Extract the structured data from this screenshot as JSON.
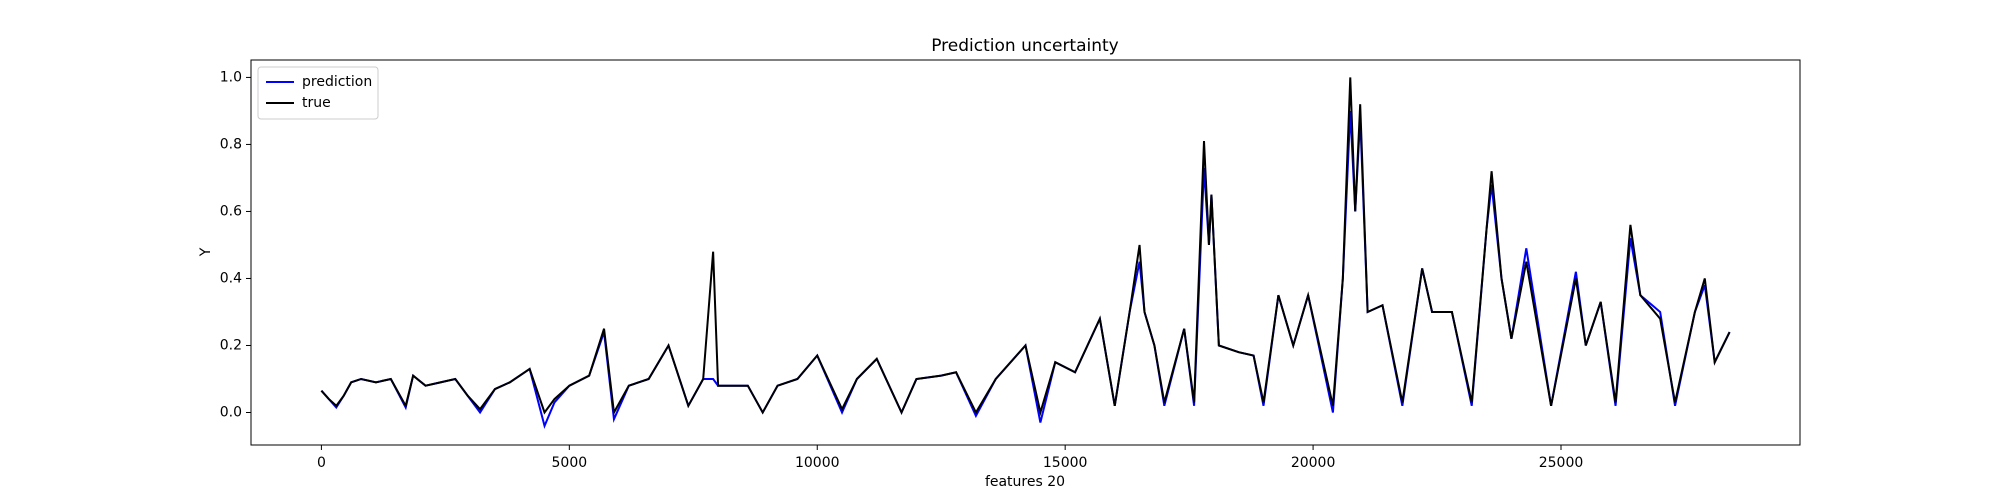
{
  "chart_data": {
    "type": "line",
    "title": "Prediction uncertainty",
    "x_label": "features 20",
    "y_label": "Y",
    "x": [
      0,
      150,
      300,
      450,
      600,
      800,
      1100,
      1400,
      1700,
      1850,
      2100,
      2400,
      2700,
      2950,
      3200,
      3500,
      3800,
      4200,
      4500,
      4700,
      5000,
      5400,
      5700,
      5900,
      6200,
      6600,
      7000,
      7400,
      7700,
      7900,
      8000,
      8600,
      8900,
      9200,
      9600,
      10000,
      10500,
      10800,
      11200,
      11700,
      12000,
      12500,
      12800,
      13200,
      13600,
      14200,
      14500,
      14800,
      15200,
      15700,
      16000,
      16300,
      16500,
      16600,
      16800,
      17000,
      17400,
      17600,
      17800,
      17900,
      17950,
      18100,
      18500,
      18800,
      19000,
      19300,
      19600,
      19900,
      20400,
      20600,
      20750,
      20850,
      20950,
      21100,
      21400,
      21800,
      22200,
      22400,
      22800,
      23200,
      23500,
      23600,
      23800,
      24000,
      24300,
      24800,
      25300,
      25500,
      25800,
      26100,
      26400,
      26600,
      27000,
      27300,
      27700,
      27900,
      28100,
      28400
    ],
    "series": [
      {
        "name": "prediction",
        "color": "#0000ff",
        "values": [
          0.065,
          0.04,
          0.015,
          0.05,
          0.09,
          0.1,
          0.09,
          0.1,
          0.015,
          0.11,
          0.08,
          0.09,
          0.1,
          0.05,
          0.0,
          0.07,
          0.09,
          0.13,
          -0.04,
          0.03,
          0.08,
          0.11,
          0.24,
          -0.02,
          0.08,
          0.1,
          0.2,
          0.02,
          0.1,
          0.1,
          0.08,
          0.08,
          0.0,
          0.08,
          0.1,
          0.17,
          0.0,
          0.1,
          0.16,
          0.0,
          0.1,
          0.11,
          0.12,
          -0.01,
          0.1,
          0.2,
          -0.03,
          0.15,
          0.12,
          0.28,
          0.02,
          0.3,
          0.45,
          0.3,
          0.2,
          0.02,
          0.25,
          0.02,
          0.73,
          0.5,
          0.65,
          0.2,
          0.18,
          0.17,
          0.02,
          0.35,
          0.2,
          0.35,
          0.0,
          0.4,
          0.9,
          0.6,
          0.88,
          0.3,
          0.32,
          0.02,
          0.43,
          0.3,
          0.3,
          0.02,
          0.55,
          0.68,
          0.4,
          0.22,
          0.49,
          0.02,
          0.42,
          0.2,
          0.33,
          0.02,
          0.52,
          0.35,
          0.3,
          0.02,
          0.3,
          0.38,
          0.15,
          0.24
        ]
      },
      {
        "name": "true",
        "color": "#000000",
        "values": [
          0.065,
          0.04,
          0.02,
          0.05,
          0.09,
          0.1,
          0.09,
          0.1,
          0.02,
          0.11,
          0.08,
          0.09,
          0.1,
          0.05,
          0.01,
          0.07,
          0.09,
          0.13,
          0.0,
          0.04,
          0.08,
          0.11,
          0.25,
          0.0,
          0.08,
          0.1,
          0.2,
          0.02,
          0.1,
          0.48,
          0.08,
          0.08,
          0.0,
          0.08,
          0.1,
          0.17,
          0.01,
          0.1,
          0.16,
          0.0,
          0.1,
          0.11,
          0.12,
          0.0,
          0.1,
          0.2,
          0.0,
          0.15,
          0.12,
          0.28,
          0.02,
          0.3,
          0.5,
          0.3,
          0.2,
          0.03,
          0.25,
          0.03,
          0.81,
          0.5,
          0.65,
          0.2,
          0.18,
          0.17,
          0.03,
          0.35,
          0.2,
          0.35,
          0.02,
          0.4,
          1.0,
          0.6,
          0.92,
          0.3,
          0.32,
          0.03,
          0.43,
          0.3,
          0.3,
          0.03,
          0.55,
          0.72,
          0.4,
          0.22,
          0.45,
          0.02,
          0.4,
          0.2,
          0.33,
          0.03,
          0.56,
          0.35,
          0.28,
          0.03,
          0.3,
          0.4,
          0.15,
          0.24
        ]
      }
    ],
    "xlim": [
      -1420,
      29820
    ],
    "xticks": [
      0,
      5000,
      10000,
      15000,
      20000,
      25000
    ],
    "ylim": [
      -0.097,
      1.052
    ],
    "yticks": [
      {
        "value": 0,
        "label": "0.0"
      },
      0.2,
      0.4,
      0.6,
      0.8,
      {
        "value": 1,
        "label": "1.0"
      }
    ],
    "legend": "upper left"
  }
}
